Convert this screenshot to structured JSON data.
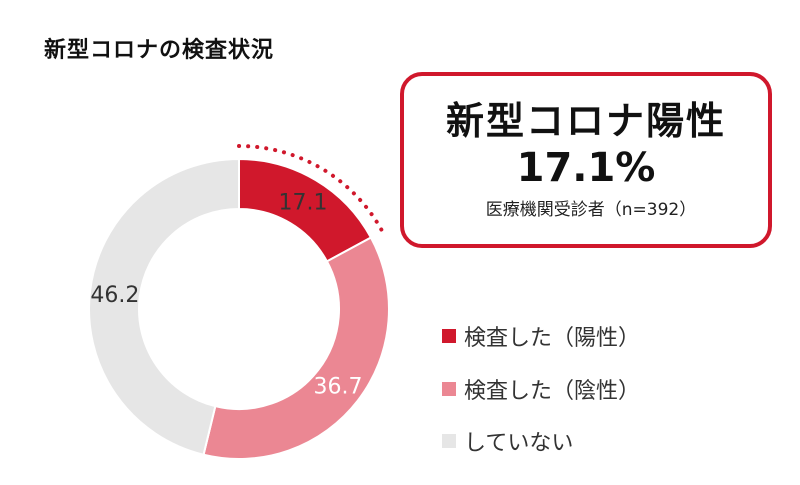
{
  "title": "新型コロナの検査状況",
  "callout": {
    "headline": "新型コロナ陽性",
    "value": "17.1%",
    "note": "医療機関受診者（n=392）"
  },
  "chart_data": {
    "type": "pie",
    "style": "donut",
    "title": "新型コロナの検査状況",
    "categories": [
      "検査した（陽性）",
      "検査した（陰性）",
      "していない"
    ],
    "values": [
      17.1,
      36.7,
      46.2
    ],
    "value_labels": [
      "17.1",
      "36.7",
      "46.2"
    ],
    "colors": [
      "#d0182c",
      "#eb8793",
      "#e6e6e6"
    ],
    "label_colors": [
      "#333333",
      "#ffffff",
      "#333333"
    ],
    "legend_position": "right",
    "highlight": "検査した（陽性）"
  }
}
